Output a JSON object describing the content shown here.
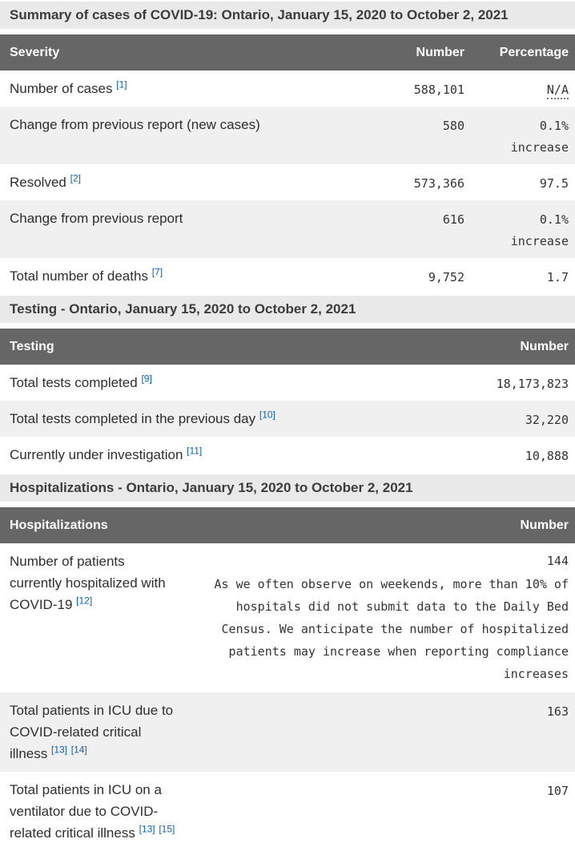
{
  "colors": {
    "header_bg": "#666666",
    "header_text": "#ffffff",
    "caption_bg": "#e9e9e9",
    "row_alt_bg": "#f0f0f0",
    "body_text": "#2e2e2e",
    "link": "#0b62b0"
  },
  "summary_table": {
    "caption": "Summary of cases of COVID-19: Ontario, January 15, 2020 to October 2, 2021",
    "columns": [
      "Severity",
      "Number",
      "Percentage"
    ],
    "rows": [
      {
        "label": "Number of cases",
        "refs": [
          "[1]"
        ],
        "number": "588,101",
        "percentage": "N/A"
      },
      {
        "label": "Change from previous report (new cases)",
        "refs": [],
        "number": "580",
        "percentage": "0.1% increase"
      },
      {
        "label": "Resolved",
        "refs": [
          "[2]"
        ],
        "number": "573,366",
        "percentage": "97.5"
      },
      {
        "label": "Change from previous report",
        "refs": [],
        "number": "616",
        "percentage": "0.1% increase"
      },
      {
        "label": "Total number of deaths",
        "refs": [
          "[7]"
        ],
        "number": "9,752",
        "percentage": "1.7"
      }
    ]
  },
  "testing_table": {
    "caption": "Testing - Ontario, January 15, 2020 to October 2, 2021",
    "columns": [
      "Testing",
      "Number"
    ],
    "rows": [
      {
        "label": "Total tests completed",
        "refs": [
          "[9]"
        ],
        "number": "18,173,823"
      },
      {
        "label": "Total tests completed in the previous day",
        "refs": [
          "[10]"
        ],
        "number": "32,220"
      },
      {
        "label": "Currently under investigation",
        "refs": [
          "[11]"
        ],
        "number": "10,888"
      }
    ]
  },
  "hospitalizations_table": {
    "caption": "Hospitalizations - Ontario, January 15, 2020 to October 2, 2021",
    "columns": [
      "Hospitalizations",
      "Number"
    ],
    "rows": [
      {
        "label": "Number of patients currently hospitalized with COVID-19",
        "refs": [
          "[12]"
        ],
        "number": "144",
        "note": "As we often observe on weekends, more than 10% of hospitals did not submit data to the Daily Bed Census. We anticipate the number of hospitalized patients may increase when reporting compliance increases"
      },
      {
        "label": "Total patients in ICU due to COVID-related critical illness",
        "refs": [
          "[13]",
          "[14]"
        ],
        "number": "163"
      },
      {
        "label": "Total patients in ICU on a ventilator due to COVID-related critical illness",
        "refs": [
          "[13]",
          "[15]"
        ],
        "number": "107"
      }
    ]
  }
}
